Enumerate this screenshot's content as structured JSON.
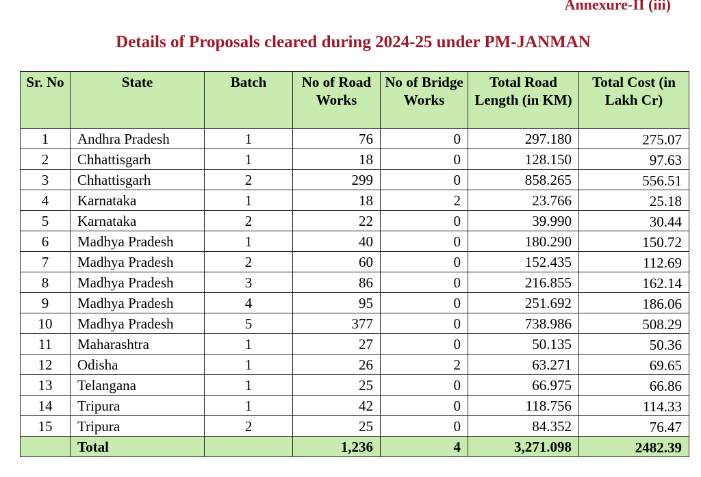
{
  "annexure": "Annexure-II (iii)",
  "title": "Details of Proposals cleared during 2024-25 under PM-JANMAN",
  "headers": {
    "sr_no": "Sr. No",
    "state": "State",
    "batch": "Batch",
    "road_works": "No of Road Works",
    "bridge_works": "No of Bridge Works",
    "road_length": "Total Road Length (in KM)",
    "total_cost": "Total Cost (in Lakh Cr)"
  },
  "rows": [
    {
      "sr": "1",
      "state": "Andhra Pradesh",
      "batch": "1",
      "road": "76",
      "bridge": "0",
      "length": "297.180",
      "cost": "275.07"
    },
    {
      "sr": "2",
      "state": "Chhattisgarh",
      "batch": "1",
      "road": "18",
      "bridge": "0",
      "length": "128.150",
      "cost": "97.63"
    },
    {
      "sr": "3",
      "state": "Chhattisgarh",
      "batch": "2",
      "road": "299",
      "bridge": "0",
      "length": "858.265",
      "cost": "556.51"
    },
    {
      "sr": "4",
      "state": "Karnataka",
      "batch": "1",
      "road": "18",
      "bridge": "2",
      "length": "23.766",
      "cost": "25.18"
    },
    {
      "sr": "5",
      "state": "Karnataka",
      "batch": "2",
      "road": "22",
      "bridge": "0",
      "length": "39.990",
      "cost": "30.44"
    },
    {
      "sr": "6",
      "state": "Madhya Pradesh",
      "batch": "1",
      "road": "40",
      "bridge": "0",
      "length": "180.290",
      "cost": "150.72"
    },
    {
      "sr": "7",
      "state": "Madhya Pradesh",
      "batch": "2",
      "road": "60",
      "bridge": "0",
      "length": "152.435",
      "cost": "112.69"
    },
    {
      "sr": "8",
      "state": "Madhya Pradesh",
      "batch": "3",
      "road": "86",
      "bridge": "0",
      "length": "216.855",
      "cost": "162.14"
    },
    {
      "sr": "9",
      "state": "Madhya Pradesh",
      "batch": "4",
      "road": "95",
      "bridge": "0",
      "length": "251.692",
      "cost": "186.06"
    },
    {
      "sr": "10",
      "state": "Madhya Pradesh",
      "batch": "5",
      "road": "377",
      "bridge": "0",
      "length": "738.986",
      "cost": "508.29"
    },
    {
      "sr": "11",
      "state": "Maharashtra",
      "batch": "1",
      "road": "27",
      "bridge": "0",
      "length": "50.135",
      "cost": "50.36"
    },
    {
      "sr": "12",
      "state": "Odisha",
      "batch": "1",
      "road": "26",
      "bridge": "2",
      "length": "63.271",
      "cost": "69.65"
    },
    {
      "sr": "13",
      "state": "Telangana",
      "batch": "1",
      "road": "25",
      "bridge": "0",
      "length": "66.975",
      "cost": "66.86"
    },
    {
      "sr": "14",
      "state": "Tripura",
      "batch": "1",
      "road": "42",
      "bridge": "0",
      "length": "118.756",
      "cost": "114.33"
    },
    {
      "sr": "15",
      "state": "Tripura",
      "batch": "2",
      "road": "25",
      "bridge": "0",
      "length": "84.352",
      "cost": "76.47"
    }
  ],
  "total": {
    "label": "Total",
    "road": "1,236",
    "bridge": "4",
    "length": "3,271.098",
    "cost": "2482.39"
  },
  "colors": {
    "title": "#a0182a",
    "header_bg": "#c8ecb0"
  }
}
